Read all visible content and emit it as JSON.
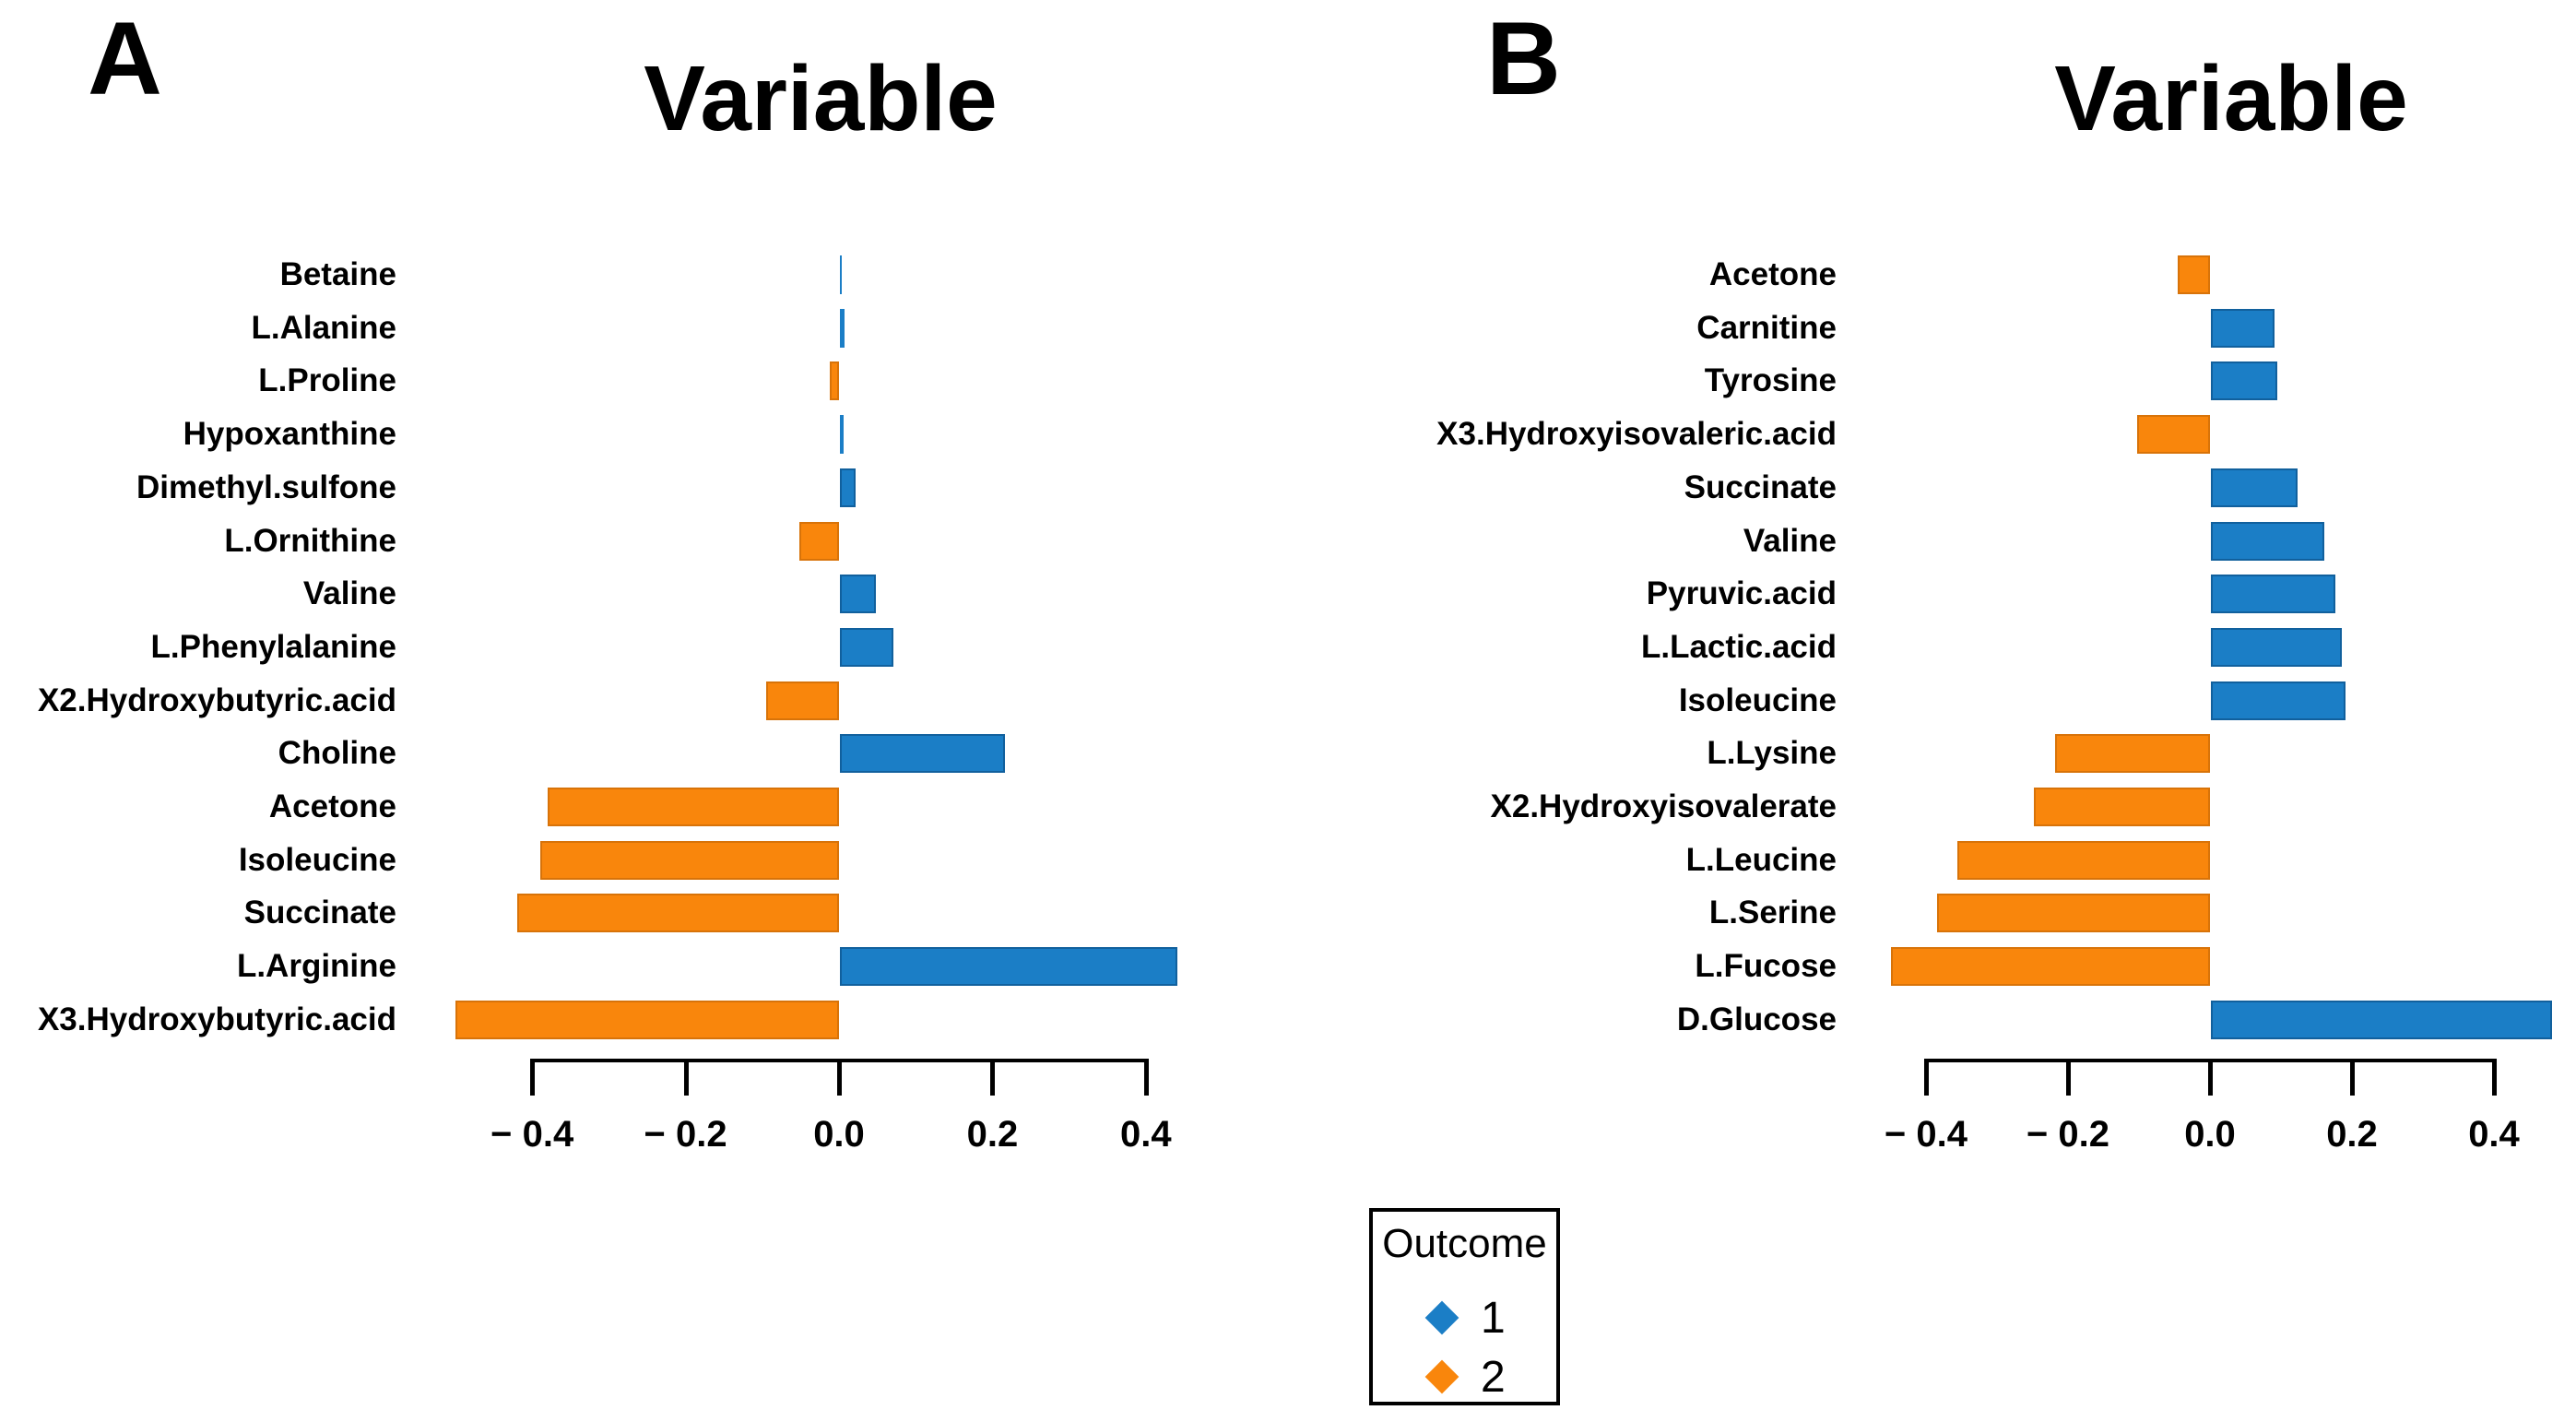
{
  "figure": {
    "background": "#ffffff"
  },
  "colors": {
    "outcome1_blue": "#1b7ec6",
    "outcome2_orange": "#f9860c",
    "axis_black": "#000000"
  },
  "legend": {
    "title": "Outcome",
    "items": [
      {
        "label": "1",
        "color": "#1b7ec6"
      },
      {
        "label": "2",
        "color": "#f9860c"
      }
    ]
  },
  "chart_data": [
    {
      "type": "bar",
      "orientation": "horizontal",
      "panel_label": "A",
      "title": "Variable",
      "categories": [
        "Betaine",
        "L.Alanine",
        "L.Proline",
        "Hypoxanthine",
        "Dimethyl.sulfone",
        "L.Ornithine",
        "Valine",
        "L.Phenylalanine",
        "X2.Hydroxybutyric.acid",
        "Choline",
        "Acetone",
        "Isoleucine",
        "Succinate",
        "L.Arginine",
        "X3.Hydroxybutyric.acid"
      ],
      "values": [
        0.002,
        0.006,
        -0.012,
        0.005,
        0.02,
        -0.052,
        0.047,
        0.07,
        -0.095,
        0.215,
        -0.38,
        -0.39,
        -0.42,
        0.44,
        -0.5
      ],
      "outcome_group": [
        1,
        1,
        2,
        1,
        1,
        2,
        1,
        1,
        2,
        1,
        2,
        2,
        2,
        1,
        2
      ],
      "x_tick_values": [
        -0.4,
        -0.2,
        0.0,
        0.2,
        0.4
      ],
      "x_tick_labels": [
        "− 0.4",
        "− 0.2",
        "0.0",
        "0.2",
        "0.4"
      ],
      "xlim": [
        -0.55,
        0.47
      ],
      "grid": false,
      "legend_position": "bottom-center-shared"
    },
    {
      "type": "bar",
      "orientation": "horizontal",
      "panel_label": "B",
      "title": "Variable",
      "categories": [
        "Acetone",
        "Carnitine",
        "Tyrosine",
        "X3.Hydroxyisovaleric.acid",
        "Succinate",
        "Valine",
        "Pyruvic.acid",
        "L.Lactic.acid",
        "Isoleucine",
        "L.Lysine",
        "X2.Hydroxyisovalerate",
        "L.Leucine",
        "L.Serine",
        "L.Fucose",
        "D.Glucose"
      ],
      "values": [
        -0.045,
        0.09,
        0.094,
        -0.102,
        0.122,
        0.16,
        0.175,
        0.185,
        0.19,
        -0.218,
        -0.248,
        -0.356,
        -0.384,
        -0.45,
        0.48
      ],
      "outcome_group": [
        2,
        1,
        1,
        2,
        1,
        1,
        1,
        1,
        1,
        2,
        2,
        2,
        2,
        2,
        1
      ],
      "x_tick_values": [
        -0.4,
        -0.2,
        0.0,
        0.2,
        0.4
      ],
      "x_tick_labels": [
        "− 0.4",
        "− 0.2",
        "0.0",
        "0.2",
        "0.4"
      ],
      "xlim": [
        -0.55,
        0.52
      ],
      "grid": false,
      "legend_position": "bottom-center-shared"
    }
  ]
}
